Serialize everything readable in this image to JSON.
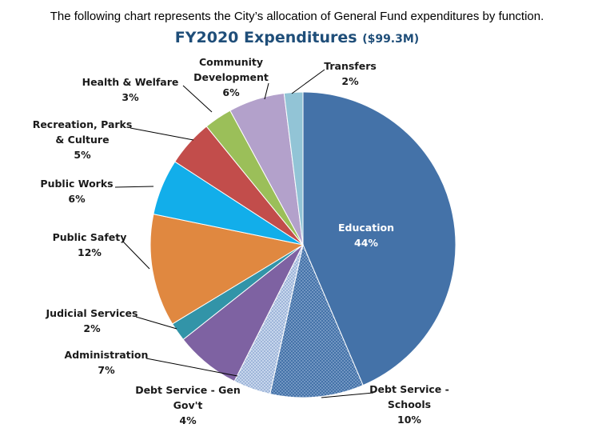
{
  "intro_text": "The following chart represents the City’s allocation of General Fund expenditures by function.",
  "title_main": "FY2020 Expenditures",
  "title_sub": "($99.3M)",
  "chart_data": {
    "type": "pie",
    "title": "FY2020 Expenditures ($99.3M)",
    "slices": [
      {
        "label": "Education",
        "value": 44,
        "value_label": "44%",
        "color": "#4472a8",
        "pattern": null
      },
      {
        "label": "Debt Service - Schools",
        "value": 10,
        "value_label": "10%",
        "color": "#4472a8",
        "pattern": "dots"
      },
      {
        "label": "Debt Service - Gen Gov't",
        "value": 4,
        "value_label": "4%",
        "color": "#9ab3d6",
        "pattern": "dots"
      },
      {
        "label": "Administration",
        "value": 7,
        "value_label": "7%",
        "color": "#7e62a2",
        "pattern": null
      },
      {
        "label": "Judicial Services",
        "value": 2,
        "value_label": "2%",
        "color": "#3294a8",
        "pattern": null
      },
      {
        "label": "Public Safety",
        "value": 12,
        "value_label": "12%",
        "color": "#e08840",
        "pattern": null
      },
      {
        "label": "Public Works",
        "value": 6,
        "value_label": "6%",
        "color": "#12aeea",
        "pattern": null
      },
      {
        "label": "Recreation, Parks & Culture",
        "value": 5,
        "value_label": "5%",
        "color": "#c24d4b",
        "pattern": null
      },
      {
        "label": "Health & Welfare",
        "value": 3,
        "value_label": "3%",
        "color": "#9bbf59",
        "pattern": null
      },
      {
        "label": "Community Development",
        "value": 6,
        "value_label": "6%",
        "color": "#b3a1cb",
        "pattern": null
      },
      {
        "label": "Transfers",
        "value": 2,
        "value_label": "2%",
        "color": "#92c4d6",
        "pattern": null
      }
    ]
  }
}
